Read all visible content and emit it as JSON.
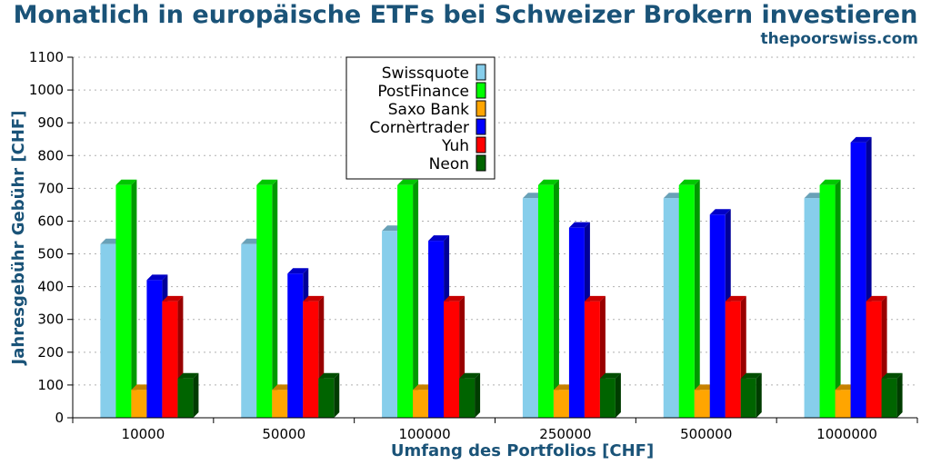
{
  "chart_data": {
    "type": "bar",
    "title": "Monatlich in europäische ETFs bei Schweizer Brokern investieren",
    "source": "thepoorswiss.com",
    "xlabel": "Umfang des Portfolios [CHF]",
    "ylabel": "Jahresgebühr Gebühr [CHF]",
    "ylim": [
      0,
      1100
    ],
    "yticks": [
      0,
      100,
      200,
      300,
      400,
      500,
      600,
      700,
      800,
      900,
      1000,
      1100
    ],
    "grid": true,
    "legend_position": "top-center",
    "categories": [
      "10000",
      "50000",
      "100000",
      "250000",
      "500000",
      "1000000"
    ],
    "series": [
      {
        "name": "Swissquote",
        "color": "#87ceeb",
        "values": [
          530,
          530,
          570,
          670,
          670,
          670
        ]
      },
      {
        "name": "PostFinance",
        "color": "#00ff00",
        "values": [
          710,
          710,
          710,
          710,
          710,
          710
        ]
      },
      {
        "name": "Saxo Bank",
        "color": "#ffa500",
        "values": [
          85,
          85,
          85,
          85,
          85,
          85
        ]
      },
      {
        "name": "Cornèrtrader",
        "color": "#0000ff",
        "values": [
          420,
          440,
          540,
          580,
          620,
          840
        ]
      },
      {
        "name": "Yuh",
        "color": "#ff0000",
        "values": [
          355,
          355,
          355,
          355,
          355,
          355
        ]
      },
      {
        "name": "Neon",
        "color": "#006400",
        "values": [
          120,
          120,
          120,
          120,
          120,
          120
        ]
      }
    ]
  }
}
